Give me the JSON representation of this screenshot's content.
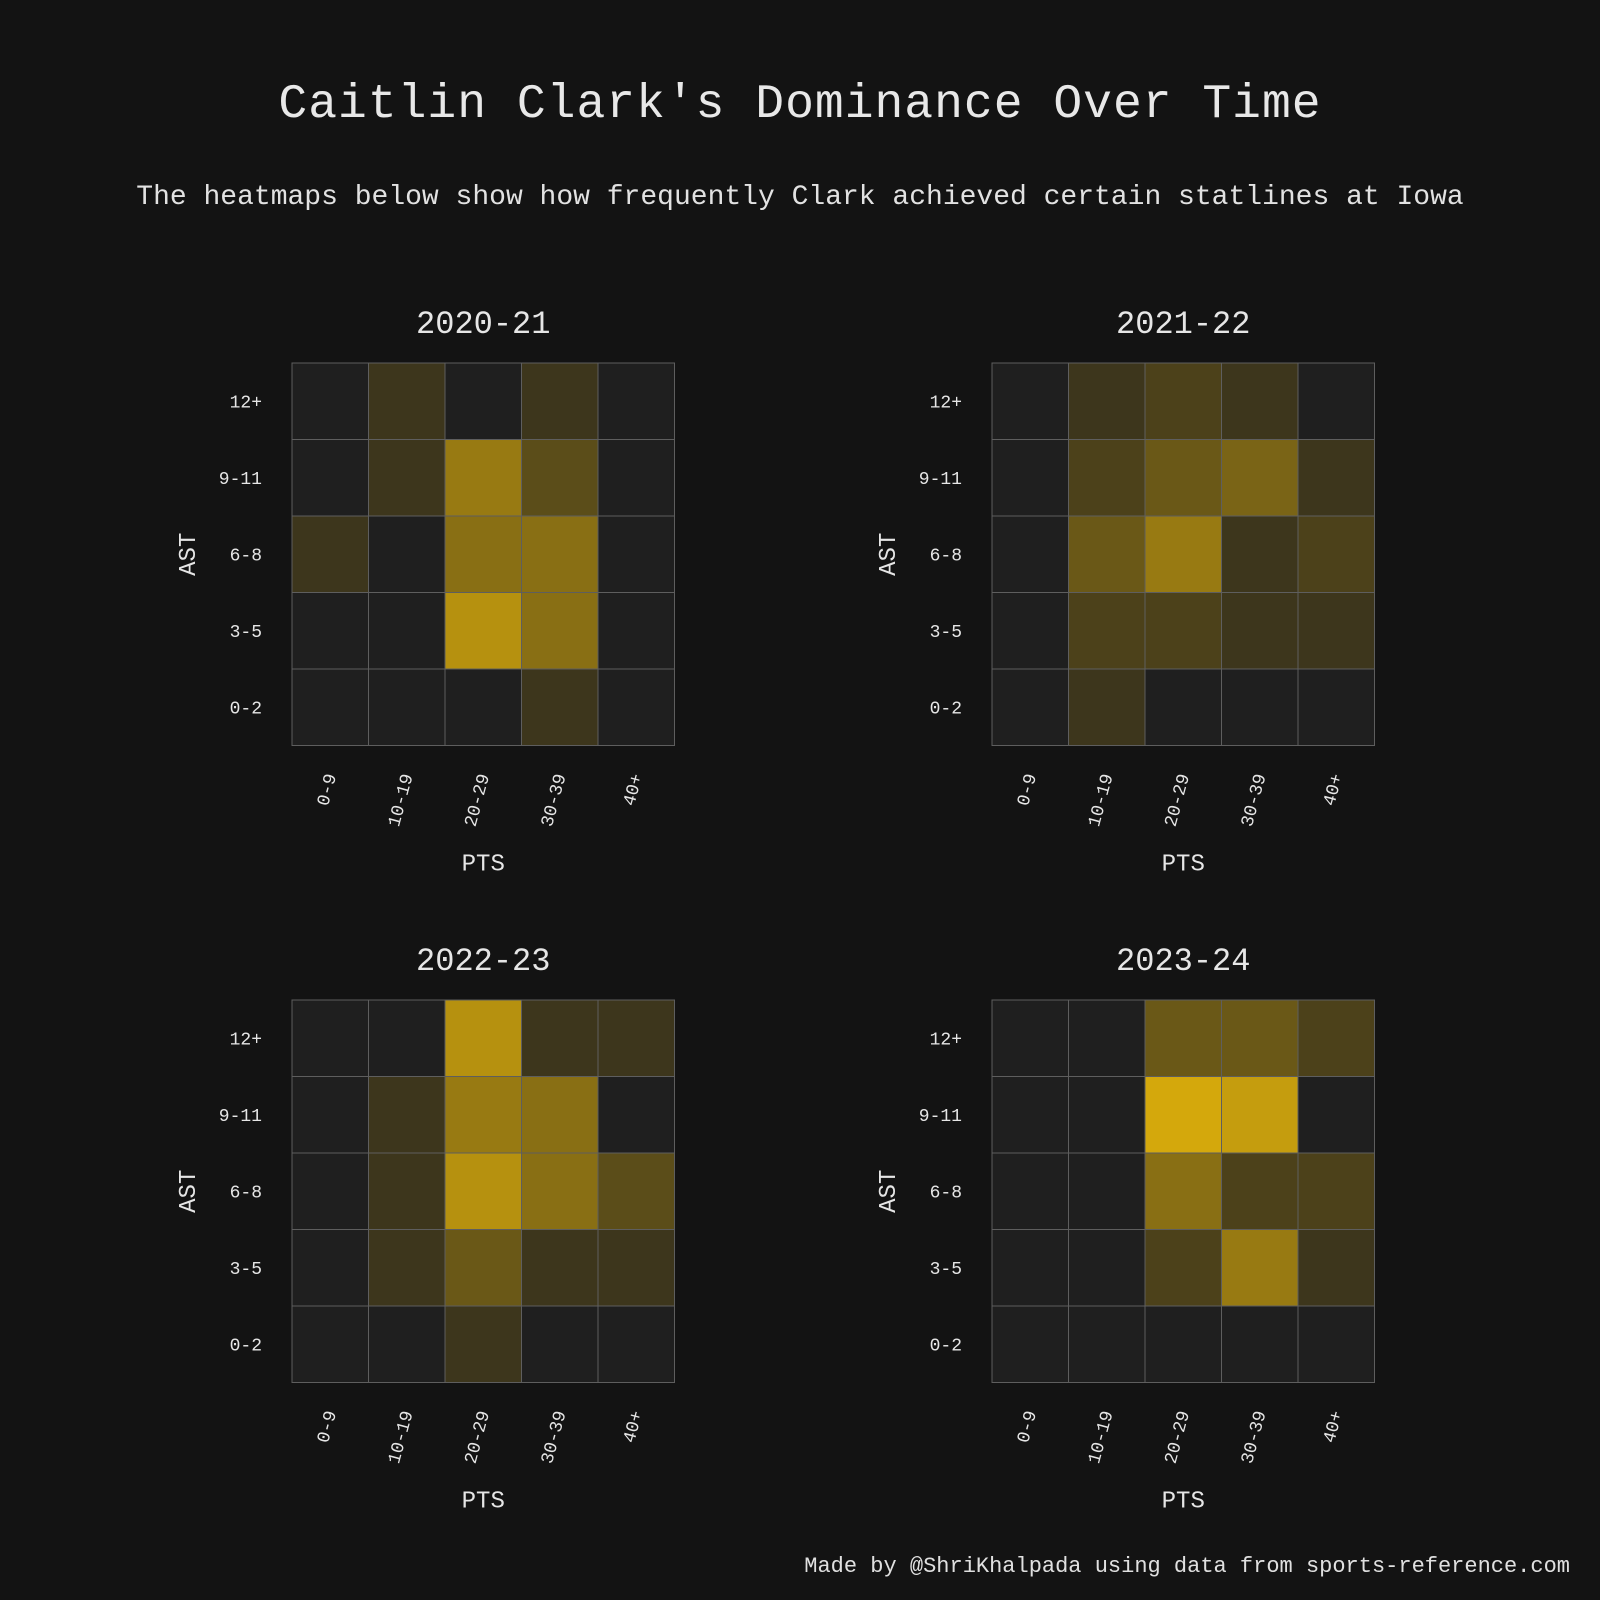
{
  "title": "Caitlin Clark's Dominance Over Time",
  "subtitle": "The heatmaps below show how frequently Clark achieved certain statlines at Iowa",
  "footer": "Made by @ShriKhalpada using data from sports-reference.com",
  "colors": {
    "background": "#131313",
    "empty_cell": "#1f1f1f",
    "max_cell": "#d4a80c",
    "grid_line": "#5e5e5e",
    "text": "#e6e6e6"
  },
  "chart_data": [
    {
      "type": "heatmap",
      "title": "2020-21",
      "xlabel": "PTS",
      "ylabel": "AST",
      "x_categories": [
        "0-9",
        "10-19",
        "20-29",
        "30-39",
        "40+"
      ],
      "y_categories": [
        "12+",
        "9-11",
        "6-8",
        "3-5",
        "0-2"
      ],
      "values": [
        [
          0,
          1,
          0,
          1,
          0
        ],
        [
          0,
          1,
          4,
          2,
          0
        ],
        [
          1,
          0,
          3.5,
          3.5,
          0
        ],
        [
          0,
          0,
          5,
          3.5,
          0
        ],
        [
          0,
          0,
          0,
          1,
          0
        ]
      ],
      "vmax": 6
    },
    {
      "type": "heatmap",
      "title": "2021-22",
      "xlabel": "PTS",
      "ylabel": "AST",
      "x_categories": [
        "0-9",
        "10-19",
        "20-29",
        "30-39",
        "40+"
      ],
      "y_categories": [
        "12+",
        "9-11",
        "6-8",
        "3-5",
        "0-2"
      ],
      "values": [
        [
          0,
          1,
          1.5,
          1,
          0
        ],
        [
          0,
          1.5,
          2.5,
          3,
          1
        ],
        [
          0,
          2.5,
          4,
          1,
          1.5
        ],
        [
          0,
          1.5,
          1.5,
          1,
          1
        ],
        [
          0,
          1,
          0,
          0,
          0
        ]
      ],
      "vmax": 6
    },
    {
      "type": "heatmap",
      "title": "2022-23",
      "xlabel": "PTS",
      "ylabel": "AST",
      "x_categories": [
        "0-9",
        "10-19",
        "20-29",
        "30-39",
        "40+"
      ],
      "y_categories": [
        "12+",
        "9-11",
        "6-8",
        "3-5",
        "0-2"
      ],
      "values": [
        [
          0,
          0,
          5,
          1,
          1
        ],
        [
          0,
          1,
          4,
          3.5,
          0
        ],
        [
          0,
          1,
          5,
          3.5,
          2
        ],
        [
          0,
          1,
          2.5,
          1,
          1
        ],
        [
          0,
          0,
          1,
          0,
          0
        ]
      ],
      "vmax": 6
    },
    {
      "type": "heatmap",
      "title": "2023-24",
      "xlabel": "PTS",
      "ylabel": "AST",
      "x_categories": [
        "0-9",
        "10-19",
        "20-29",
        "30-39",
        "40+"
      ],
      "y_categories": [
        "12+",
        "9-11",
        "6-8",
        "3-5",
        "0-2"
      ],
      "values": [
        [
          0,
          0,
          2.5,
          2.5,
          1.5
        ],
        [
          0,
          0,
          6,
          5.5,
          0
        ],
        [
          0,
          0,
          3.5,
          1.5,
          1.5
        ],
        [
          0,
          0,
          1.5,
          4,
          1
        ],
        [
          0,
          0,
          0,
          0,
          0
        ]
      ],
      "vmax": 6
    }
  ]
}
